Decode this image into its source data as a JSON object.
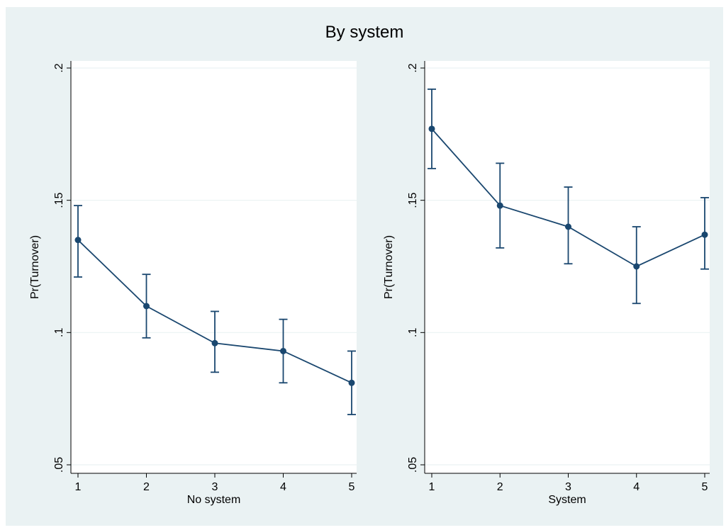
{
  "title": "By system",
  "colors": {
    "background": "#eaf2f3",
    "plot_area": "#ffffff",
    "series": "#1a476f",
    "grid": "#eaf2f3"
  },
  "chart_data": [
    {
      "type": "line",
      "title": "",
      "xlabel": "No system",
      "ylabel": "Pr(Turnover)",
      "x": [
        1,
        2,
        3,
        4,
        5
      ],
      "xticks": [
        "1",
        "2",
        "3",
        "4",
        "5"
      ],
      "yticks": [
        0.05,
        0.1,
        0.15,
        0.2
      ],
      "ytick_labels": [
        ".05",
        ".1",
        ".15",
        ".2"
      ],
      "ylim": [
        0.05,
        0.2
      ],
      "grid": true,
      "series": [
        {
          "values": [
            0.135,
            0.11,
            0.096,
            0.093,
            0.081
          ],
          "ci_low": [
            0.121,
            0.098,
            0.085,
            0.081,
            0.069
          ],
          "ci_high": [
            0.148,
            0.122,
            0.108,
            0.105,
            0.093
          ]
        }
      ]
    },
    {
      "type": "line",
      "title": "",
      "xlabel": "System",
      "ylabel": "Pr(Turnover)",
      "x": [
        1,
        2,
        3,
        4,
        5
      ],
      "xticks": [
        "1",
        "2",
        "3",
        "4",
        "5"
      ],
      "yticks": [
        0.05,
        0.1,
        0.15,
        0.2
      ],
      "ytick_labels": [
        ".05",
        ".1",
        ".15",
        ".2"
      ],
      "ylim": [
        0.05,
        0.2
      ],
      "grid": true,
      "series": [
        {
          "values": [
            0.177,
            0.148,
            0.14,
            0.125,
            0.137
          ],
          "ci_low": [
            0.162,
            0.132,
            0.126,
            0.111,
            0.124
          ],
          "ci_high": [
            0.192,
            0.164,
            0.155,
            0.14,
            0.151
          ]
        }
      ]
    }
  ]
}
